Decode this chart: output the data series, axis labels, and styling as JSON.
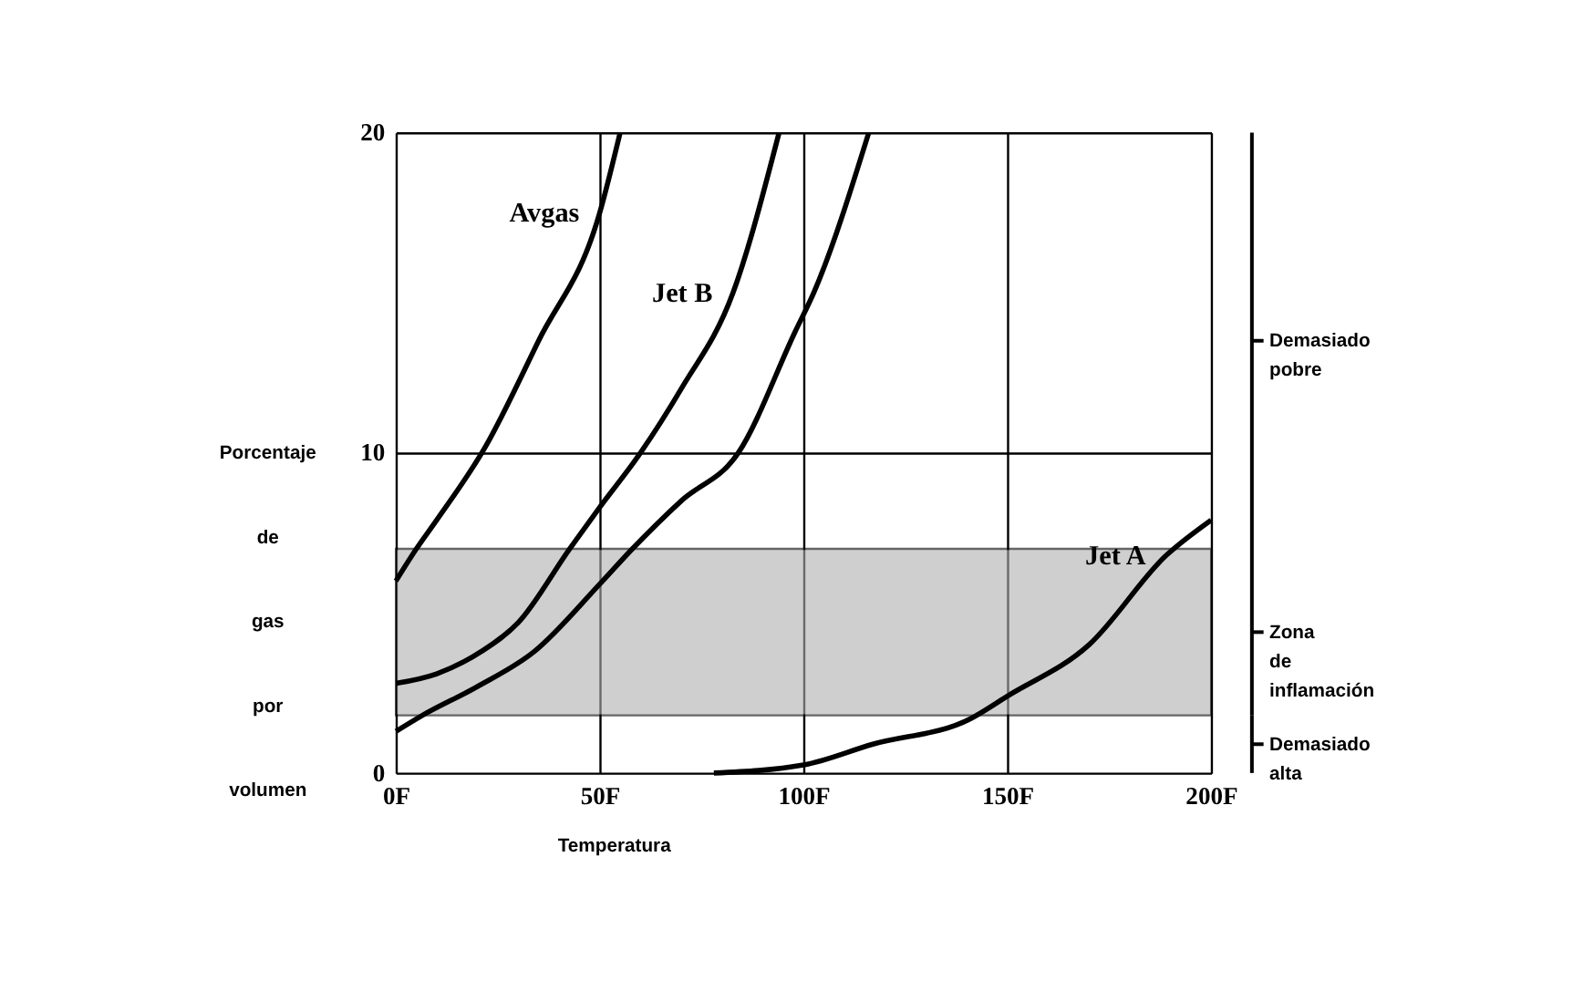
{
  "chart_data": {
    "type": "line",
    "xlabel": "Temperatura",
    "ylabel": "Porcentaje de gas por volumen",
    "series": [
      {
        "name": "Avgas",
        "color": "#000000",
        "x": [
          0,
          5,
          10,
          22,
          35,
          50,
          55
        ],
        "values": [
          6.0,
          7.0,
          7.9,
          10.2,
          13.5,
          17.5,
          20
        ]
      },
      {
        "name": "Jet B",
        "color": "#000000",
        "x": [
          0,
          10,
          21,
          30,
          42.6,
          50,
          60,
          70,
          82.7,
          94
        ],
        "values": [
          2.8,
          3.1,
          3.8,
          4.7,
          7,
          8.3,
          10,
          12,
          15,
          20
        ]
      },
      {
        "color": "#000000",
        "x": [
          0,
          6.5,
          20,
          34,
          50,
          58,
          70,
          84,
          98,
          102.5,
          116
        ],
        "values": [
          1.3,
          1.8,
          2.7,
          3.8,
          5.9,
          7,
          8.5,
          10,
          13.8,
          15,
          20
        ]
      },
      {
        "name": "Jet A",
        "color": "#000000",
        "x": [
          78,
          100,
          117,
          141,
          150,
          170,
          189,
          200
        ],
        "values": [
          0,
          0.25,
          0.9,
          1.7,
          2.4,
          4,
          6.8,
          7.9
        ]
      }
    ],
    "annotations": [
      "Demasiado pobre",
      "Zona de inflamación",
      "Demasiado alta"
    ],
    "bands": [
      {
        "axis": "y",
        "from": 1.8,
        "to": 7,
        "color": "#b0b0b0"
      }
    ],
    "xlim": [
      0,
      200
    ],
    "xticks": [
      {
        "value": 0,
        "label": "0F"
      },
      {
        "value": 50,
        "label": "50F"
      },
      {
        "value": 100,
        "label": "100F"
      },
      {
        "value": 150,
        "label": "150F"
      },
      {
        "value": 200,
        "label": "200F"
      }
    ],
    "ylim": [
      0,
      20
    ],
    "yticks": [
      0,
      10,
      20
    ],
    "grid": true,
    "marker": "none",
    "line_style": "solid"
  }
}
